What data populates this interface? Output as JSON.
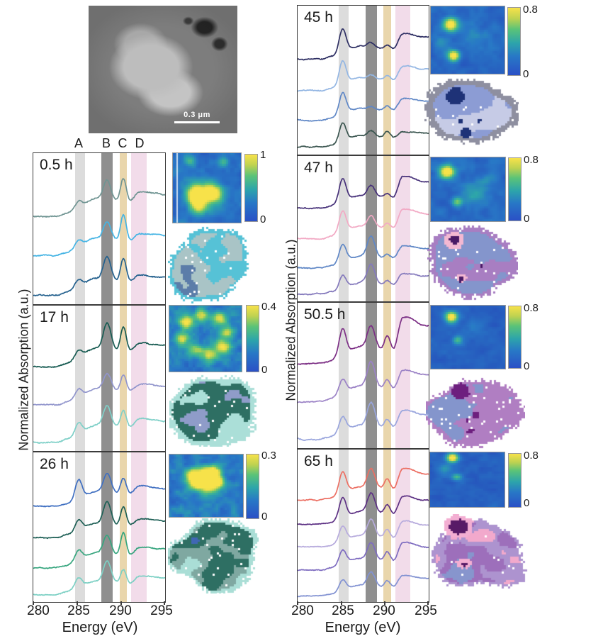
{
  "figure": {
    "tem": {
      "scalebar_label": "0.3 μm"
    }
  },
  "chart_data": {
    "type": "line",
    "xlabel": "Energy (eV)",
    "ylabel": "Normalized Absorption (a.u.)",
    "xlim": [
      280,
      295
    ],
    "x_ticks": [
      280,
      285,
      290,
      295
    ],
    "legend_position": "none",
    "grid": false,
    "bands": [
      {
        "label": "A",
        "range_ev": [
          284.7,
          285.85
        ],
        "color": "#dcdcdc"
      },
      {
        "label": "B",
        "range_ev": [
          287.7,
          289.0
        ],
        "color": "#8f8f8f"
      },
      {
        "label": "C",
        "range_ev": [
          289.8,
          290.65
        ],
        "color": "#e9d6ac"
      },
      {
        "label": "D",
        "range_ev": [
          291.1,
          292.85
        ],
        "color": "#f2dcea"
      }
    ],
    "panels": [
      {
        "time": "0.5 h",
        "column": "left",
        "colorbar": {
          "max": "1",
          "min": "0"
        },
        "series": [
          {
            "color": "#6f9492",
            "seed": 11,
            "rise": 0.5,
            "peaks": {
              "A": 0.22,
              "B": 0.72,
              "C": 0.78,
              "D": 0.28
            }
          },
          {
            "color": "#45b4e4",
            "seed": 12,
            "rise": 0.5,
            "peaks": {
              "A": 0.28,
              "B": 0.62,
              "C": 0.85,
              "D": 0.22
            }
          },
          {
            "color": "#24618e",
            "seed": 13,
            "rise": 0.45,
            "peaks": {
              "A": 0.3,
              "B": 0.8,
              "C": 0.75,
              "D": 0.18
            }
          }
        ],
        "heatmap": {
          "base": 0.1,
          "noise": 0.25,
          "freq": 7,
          "seed": 101,
          "vline": 0.05,
          "spots": [
            {
              "x": 0.33,
              "y": 0.6,
              "r": 0.1,
              "a": 0.95
            },
            {
              "x": 0.38,
              "y": 0.76,
              "r": 0.08,
              "a": 0.6
            },
            {
              "x": 0.6,
              "y": 0.58,
              "r": 0.09,
              "a": 0.75
            },
            {
              "x": 0.5,
              "y": 0.6,
              "r": 0.12,
              "a": 0.4
            },
            {
              "x": 0.25,
              "y": 0.1,
              "r": 0.06,
              "a": 0.3
            },
            {
              "x": 0.75,
              "y": 0.12,
              "r": 0.05,
              "a": 0.3
            }
          ]
        },
        "cluster": {
          "seed": 201,
          "freq": 3.4,
          "holes": 0.03,
          "rim": "#56c2d6",
          "rimw": 0.1,
          "colors": [
            "#5b7da9",
            "#a9c4c6",
            "#56c2d6"
          ],
          "thresholds": [
            0.3,
            0.72
          ],
          "blobs": []
        }
      },
      {
        "time": "17 h",
        "column": "left",
        "colorbar": {
          "max": "0.4",
          "min": "0"
        },
        "series": [
          {
            "color": "#175b52",
            "seed": 21,
            "rise": 0.55,
            "peaks": {
              "A": 0.28,
              "B": 0.95,
              "C": 0.8,
              "D": 0.22
            }
          },
          {
            "color": "#9195cc",
            "seed": 22,
            "rise": 0.45,
            "peaks": {
              "A": 0.3,
              "B": 0.6,
              "C": 0.55,
              "D": 0.22
            }
          },
          {
            "color": "#7fd0c8",
            "seed": 23,
            "rise": 0.5,
            "peaks": {
              "A": 0.4,
              "B": 0.75,
              "C": 0.6,
              "D": 0.28
            }
          }
        ],
        "heatmap": {
          "base": 0.12,
          "noise": 0.3,
          "freq": 9,
          "seed": 102,
          "spots": [
            {
              "x": 0.23,
              "y": 0.25,
              "r": 0.07,
              "a": 0.8
            },
            {
              "x": 0.45,
              "y": 0.15,
              "r": 0.07,
              "a": 0.6
            },
            {
              "x": 0.68,
              "y": 0.2,
              "r": 0.07,
              "a": 0.7
            },
            {
              "x": 0.8,
              "y": 0.4,
              "r": 0.07,
              "a": 0.6
            },
            {
              "x": 0.75,
              "y": 0.62,
              "r": 0.07,
              "a": 0.8
            },
            {
              "x": 0.55,
              "y": 0.75,
              "r": 0.07,
              "a": 0.7
            },
            {
              "x": 0.35,
              "y": 0.68,
              "r": 0.07,
              "a": 0.6
            },
            {
              "x": 0.18,
              "y": 0.5,
              "r": 0.07,
              "a": 0.75
            }
          ]
        },
        "cluster": {
          "seed": 202,
          "freq": 3.0,
          "holes": 0.02,
          "rim": "#abdfd8",
          "rimw": 0.12,
          "colors": [
            "#8f9cc9",
            "#2e6f63",
            "#abdfd8"
          ],
          "thresholds": [
            0.38,
            0.68
          ],
          "blobs": []
        }
      },
      {
        "time": "26 h",
        "column": "left",
        "colorbar": {
          "max": "0.3",
          "min": "0"
        },
        "series": [
          {
            "color": "#3f6fc1",
            "seed": 31,
            "rise": 0.5,
            "peaks": {
              "A": 0.8,
              "B": 0.85,
              "C": 0.65,
              "D": 0.28
            }
          },
          {
            "color": "#1d5f55",
            "seed": 32,
            "rise": 0.5,
            "peaks": {
              "A": 0.45,
              "B": 0.95,
              "C": 0.75,
              "D": 0.22
            }
          },
          {
            "color": "#36a57e",
            "seed": 33,
            "rise": 0.5,
            "peaks": {
              "A": 0.42,
              "B": 0.8,
              "C": 0.95,
              "D": 0.3
            }
          },
          {
            "color": "#7cd0c4",
            "seed": 34,
            "rise": 0.45,
            "peaks": {
              "A": 0.45,
              "B": 0.9,
              "C": 0.55,
              "D": 0.26
            }
          }
        ],
        "heatmap": {
          "base": 0.12,
          "noise": 0.3,
          "freq": 8,
          "seed": 103,
          "spots": [
            {
              "x": 0.45,
              "y": 0.35,
              "r": 0.09,
              "a": 0.85
            },
            {
              "x": 0.6,
              "y": 0.3,
              "r": 0.08,
              "a": 0.8
            },
            {
              "x": 0.35,
              "y": 0.45,
              "r": 0.08,
              "a": 0.7
            },
            {
              "x": 0.55,
              "y": 0.48,
              "r": 0.1,
              "a": 0.75
            },
            {
              "x": 0.3,
              "y": 0.3,
              "r": 0.06,
              "a": 0.5
            },
            {
              "x": 0.68,
              "y": 0.45,
              "r": 0.06,
              "a": 0.5
            }
          ]
        },
        "cluster": {
          "seed": 203,
          "freq": 3.6,
          "holes": 0.03,
          "rim": "#aaded6",
          "rimw": 0.1,
          "colors": [
            "#4067b5",
            "#2e6f63",
            "#7fa8a1",
            "#aaded6"
          ],
          "thresholds": [
            0.18,
            0.5,
            0.78
          ],
          "blobs": []
        }
      },
      {
        "time": "45 h",
        "column": "right",
        "colorbar": {
          "max": "0.8",
          "min": "0"
        },
        "series": [
          {
            "color": "#2e2f63",
            "seed": 41,
            "rise": 0.45,
            "peaks": {
              "A": 1.0,
              "B": 0.22,
              "C": 0.12,
              "D": 0.52
            }
          },
          {
            "color": "#93b6e3",
            "seed": 42,
            "rise": 0.45,
            "peaks": {
              "A": 0.95,
              "B": 0.18,
              "C": 0.15,
              "D": 0.48
            }
          },
          {
            "color": "#5f87c6",
            "seed": 43,
            "rise": 0.42,
            "peaks": {
              "A": 0.9,
              "B": 0.15,
              "C": 0.18,
              "D": 0.42
            }
          },
          {
            "color": "#3a554f",
            "seed": 44,
            "rise": 0.4,
            "peaks": {
              "A": 0.75,
              "B": 0.28,
              "C": 0.25,
              "D": 0.2
            }
          }
        ],
        "heatmap": {
          "base": 0.08,
          "noise": 0.18,
          "freq": 7,
          "seed": 104,
          "spots": [
            {
              "x": 0.27,
              "y": 0.27,
              "r": 0.07,
              "a": 1.0
            },
            {
              "x": 0.31,
              "y": 0.73,
              "r": 0.055,
              "a": 0.95
            },
            {
              "x": 0.6,
              "y": 0.5,
              "r": 0.15,
              "a": 0.15
            },
            {
              "x": 0.15,
              "y": 0.55,
              "r": 0.08,
              "a": 0.25
            }
          ]
        },
        "cluster": {
          "seed": 204,
          "freq": 2.8,
          "holes": 0.01,
          "rim": "#8e8fa0",
          "rimw": 0.17,
          "colors": [
            "#1e3277",
            "#8c9cd4",
            "#c6cbe6"
          ],
          "thresholds": [
            0.08,
            0.7
          ],
          "blobs": [
            {
              "x": 0.33,
              "y": 0.28,
              "rx": 0.1,
              "ry": 0.12,
              "color": "#1e3277"
            },
            {
              "x": 0.44,
              "y": 0.8,
              "rx": 0.06,
              "ry": 0.07,
              "color": "#1e3277"
            },
            {
              "x": 0.38,
              "y": 0.62,
              "rx": 0.03,
              "ry": 0.03,
              "color": "#1e3277"
            },
            {
              "x": 0.58,
              "y": 0.62,
              "rx": 0.025,
              "ry": 0.025,
              "color": "#1e3277"
            }
          ]
        }
      },
      {
        "time": "47 h",
        "column": "right",
        "colorbar": {
          "max": "0.8",
          "min": "0"
        },
        "series": [
          {
            "color": "#463079",
            "seed": 51,
            "rise": 0.45,
            "peaks": {
              "A": 1.0,
              "B": 0.5,
              "C": 0.18,
              "D": 0.78
            }
          },
          {
            "color": "#f2a9c4",
            "seed": 52,
            "rise": 0.45,
            "peaks": {
              "A": 0.9,
              "B": 0.55,
              "C": 0.22,
              "D": 0.7
            }
          },
          {
            "color": "#5f87c6",
            "seed": 53,
            "rise": 0.42,
            "peaks": {
              "A": 0.75,
              "B": 0.9,
              "C": 0.18,
              "D": 0.45
            }
          },
          {
            "color": "#8479bc",
            "seed": 54,
            "rise": 0.4,
            "peaks": {
              "A": 0.55,
              "B": 0.85,
              "C": 0.18,
              "D": 0.4
            }
          }
        ],
        "heatmap": {
          "base": 0.09,
          "noise": 0.2,
          "freq": 7,
          "seed": 105,
          "spots": [
            {
              "x": 0.22,
              "y": 0.22,
              "r": 0.07,
              "a": 1.0
            },
            {
              "x": 0.35,
              "y": 0.7,
              "r": 0.05,
              "a": 0.55
            },
            {
              "x": 0.55,
              "y": 0.55,
              "r": 0.12,
              "a": 0.25
            },
            {
              "x": 0.75,
              "y": 0.35,
              "r": 0.08,
              "a": 0.2
            }
          ]
        },
        "cluster": {
          "seed": 205,
          "freq": 3.2,
          "holes": 0.02,
          "rim": "#a87ec2",
          "rimw": 0.12,
          "colors": [
            "#4a1a66",
            "#8495cc",
            "#a87ec2"
          ],
          "thresholds": [
            0.06,
            0.7
          ],
          "blobs": [
            {
              "x": 0.3,
              "y": 0.22,
              "rx": 0.11,
              "ry": 0.11,
              "color": "#f3b8d2"
            },
            {
              "x": 0.3,
              "y": 0.21,
              "rx": 0.055,
              "ry": 0.055,
              "color": "#4a1a66"
            },
            {
              "x": 0.38,
              "y": 0.7,
              "rx": 0.06,
              "ry": 0.05,
              "color": "#f3b8d2"
            },
            {
              "x": 0.37,
              "y": 0.72,
              "rx": 0.025,
              "ry": 0.03,
              "color": "#4a1a66"
            },
            {
              "x": 0.6,
              "y": 0.55,
              "rx": 0.02,
              "ry": 0.02,
              "color": "#4a1a66"
            }
          ]
        }
      },
      {
        "time": "50.5 h",
        "column": "right",
        "colorbar": {
          "max": "0.8",
          "min": "0"
        },
        "series": [
          {
            "color": "#7c2f85",
            "seed": 61,
            "rise": 0.5,
            "peaks": {
              "A": 0.95,
              "B": 0.8,
              "C": 0.45,
              "D": 0.95
            }
          },
          {
            "color": "#9b82c6",
            "seed": 62,
            "rise": 0.45,
            "peaks": {
              "A": 0.55,
              "B": 0.95,
              "C": 0.3,
              "D": 0.55
            }
          },
          {
            "color": "#99a5dd",
            "seed": 63,
            "rise": 0.42,
            "peaks": {
              "A": 0.55,
              "B": 0.85,
              "C": 0.28,
              "D": 0.5
            }
          }
        ],
        "heatmap": {
          "base": 0.07,
          "noise": 0.15,
          "freq": 7,
          "seed": 106,
          "spots": [
            {
              "x": 0.28,
              "y": 0.18,
              "r": 0.06,
              "a": 1.0
            },
            {
              "x": 0.36,
              "y": 0.55,
              "r": 0.045,
              "a": 0.45
            },
            {
              "x": 0.6,
              "y": 0.35,
              "r": 0.1,
              "a": 0.12
            }
          ]
        },
        "cluster": {
          "seed": 206,
          "freq": 3.4,
          "holes": 0.05,
          "rim": "#b07ec2",
          "rimw": 0.1,
          "colors": [
            "#6d1f7e",
            "#8495cc",
            "#b07ec2"
          ],
          "thresholds": [
            0.08,
            0.62
          ],
          "blobs": [
            {
              "x": 0.35,
              "y": 0.25,
              "rx": 0.09,
              "ry": 0.1,
              "color": "#6d1f7e"
            },
            {
              "x": 0.5,
              "y": 0.55,
              "rx": 0.04,
              "ry": 0.04,
              "color": "#6d1f7e"
            },
            {
              "x": 0.45,
              "y": 0.75,
              "rx": 0.035,
              "ry": 0.04,
              "color": "#6d1f7e"
            },
            {
              "x": 0.42,
              "y": 0.62,
              "rx": 0.02,
              "ry": 0.02,
              "color": "#6d1f7e"
            }
          ]
        }
      },
      {
        "time": "65 h",
        "column": "right",
        "colorbar": {
          "max": "0.8",
          "min": "0"
        },
        "series": [
          {
            "color": "#ec6f63",
            "seed": 71,
            "rise": 0.48,
            "peaks": {
              "A": 1.0,
              "B": 0.9,
              "C": 0.45,
              "D": 0.8
            }
          },
          {
            "color": "#5d3184",
            "seed": 72,
            "rise": 0.45,
            "peaks": {
              "A": 0.95,
              "B": 0.95,
              "C": 0.4,
              "D": 0.7
            }
          },
          {
            "color": "#b7abdd",
            "seed": 73,
            "rise": 0.42,
            "peaks": {
              "A": 0.7,
              "B": 0.85,
              "C": 0.38,
              "D": 0.65
            }
          },
          {
            "color": "#7e6cc0",
            "seed": 74,
            "rise": 0.42,
            "peaks": {
              "A": 0.65,
              "B": 0.8,
              "C": 0.4,
              "D": 0.7
            }
          },
          {
            "color": "#8292d2",
            "seed": 75,
            "rise": 0.4,
            "peaks": {
              "A": 0.5,
              "B": 0.65,
              "C": 0.28,
              "D": 0.45
            }
          }
        ],
        "heatmap": {
          "base": 0.07,
          "noise": 0.15,
          "freq": 7,
          "seed": 107,
          "spots": [
            {
              "x": 0.3,
              "y": 0.1,
              "r": 0.055,
              "a": 1.0
            },
            {
              "x": 0.36,
              "y": 0.45,
              "r": 0.045,
              "a": 0.4
            },
            {
              "x": 0.2,
              "y": 0.3,
              "r": 0.07,
              "a": 0.2
            }
          ]
        },
        "cluster": {
          "seed": 207,
          "freq": 3.6,
          "holes": 0.015,
          "rim": "#ad93cf",
          "rimw": 0.07,
          "colors": [
            "#8795cd",
            "#9d6fbb",
            "#ad93cf",
            "#f2a9cc"
          ],
          "thresholds": [
            0.3,
            0.6,
            0.82
          ],
          "blobs": [
            {
              "x": 0.28,
              "y": 0.17,
              "rx": 0.15,
              "ry": 0.16,
              "color": "#f3aed2"
            },
            {
              "x": 0.28,
              "y": 0.17,
              "rx": 0.095,
              "ry": 0.105,
              "color": "#581b67"
            },
            {
              "x": 0.33,
              "y": 0.66,
              "rx": 0.08,
              "ry": 0.07,
              "color": "#f3aed2"
            },
            {
              "x": 0.34,
              "y": 0.68,
              "rx": 0.025,
              "ry": 0.03,
              "color": "#581b67"
            }
          ]
        }
      }
    ]
  }
}
